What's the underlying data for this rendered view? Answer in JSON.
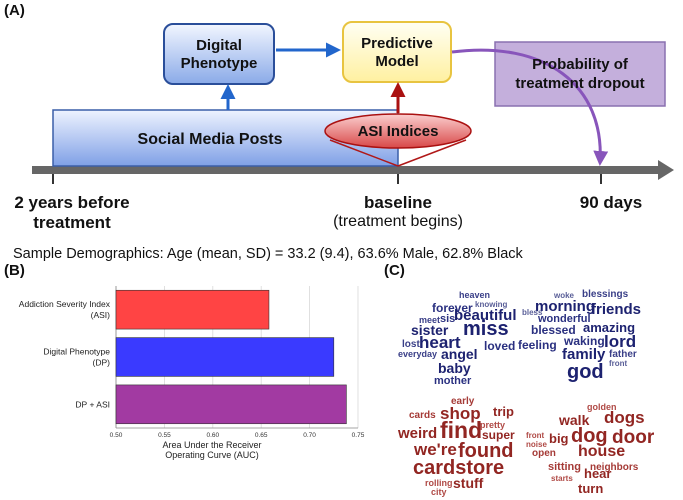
{
  "panels": {
    "a": "(A)",
    "b": "(B)",
    "c": "(C)"
  },
  "diagram": {
    "digital_phenotype": [
      "Digital",
      "Phenotype"
    ],
    "predictive_model": [
      "Predictive",
      "Model"
    ],
    "probability": [
      "Probability of",
      "treatment dropout"
    ],
    "social_media_posts": "Social Media Posts",
    "asi_indices": "ASI Indices",
    "timeline": {
      "start": [
        "2 years before",
        "treatment"
      ],
      "baseline": "baseline",
      "baseline_sub": "(treatment begins)",
      "end": "90 days"
    }
  },
  "demographics": "Sample Demographics: Age (mean, SD) = 33.2 (9.4), 63.6% Male, 62.8% Black",
  "chart_data": {
    "type": "bar",
    "orientation": "horizontal",
    "categories": [
      {
        "lines": [
          "Addiction Severity Index",
          "(ASI)"
        ],
        "value": 0.658,
        "color": "#ff4444"
      },
      {
        "lines": [
          "Digital Phenotype",
          "(DP)"
        ],
        "value": 0.725,
        "color": "#3a3aff"
      },
      {
        "lines": [
          "DP + ASI"
        ],
        "value": 0.738,
        "color": "#a23aa2"
      }
    ],
    "xlim": [
      0.5,
      0.75
    ],
    "xticks": [
      "0.50",
      "0.55",
      "0.60",
      "0.65",
      "0.70",
      "0.75"
    ],
    "xlabel": [
      "Area Under the Receiver",
      "Operating Curve (AUC)"
    ],
    "grid": true
  },
  "word_clouds": {
    "blue_left": [
      "heaven",
      "forever",
      "knowing",
      "meet",
      "sis",
      "beautiful",
      "sister",
      "miss",
      "heart",
      "lost",
      "loved",
      "everyday",
      "angel",
      "baby",
      "mother"
    ],
    "blue_right": [
      "woke",
      "blessings",
      "morning",
      "friends",
      "bless",
      "wonderful",
      "blessed",
      "amazing",
      "waking",
      "lord",
      "feeling",
      "family",
      "father",
      "front",
      "god"
    ],
    "red_left": [
      "early",
      "shop",
      "trip",
      "cards",
      "pretty",
      "weird",
      "find",
      "super",
      "we're",
      "found",
      "cardstore",
      "rolling",
      "stuff",
      "city"
    ],
    "red_right": [
      "golden",
      "walk",
      "dogs",
      "front",
      "dog",
      "door",
      "big",
      "noise",
      "house",
      "open",
      "sitting",
      "neighbors",
      "starts",
      "hear",
      "turn"
    ]
  },
  "colors": {
    "blue_words": "#1d2270",
    "red_words": "#922622",
    "arrow_blue": "#2266cc",
    "arrow_red": "#aa1111",
    "arrow_purple": "#8855bb"
  }
}
